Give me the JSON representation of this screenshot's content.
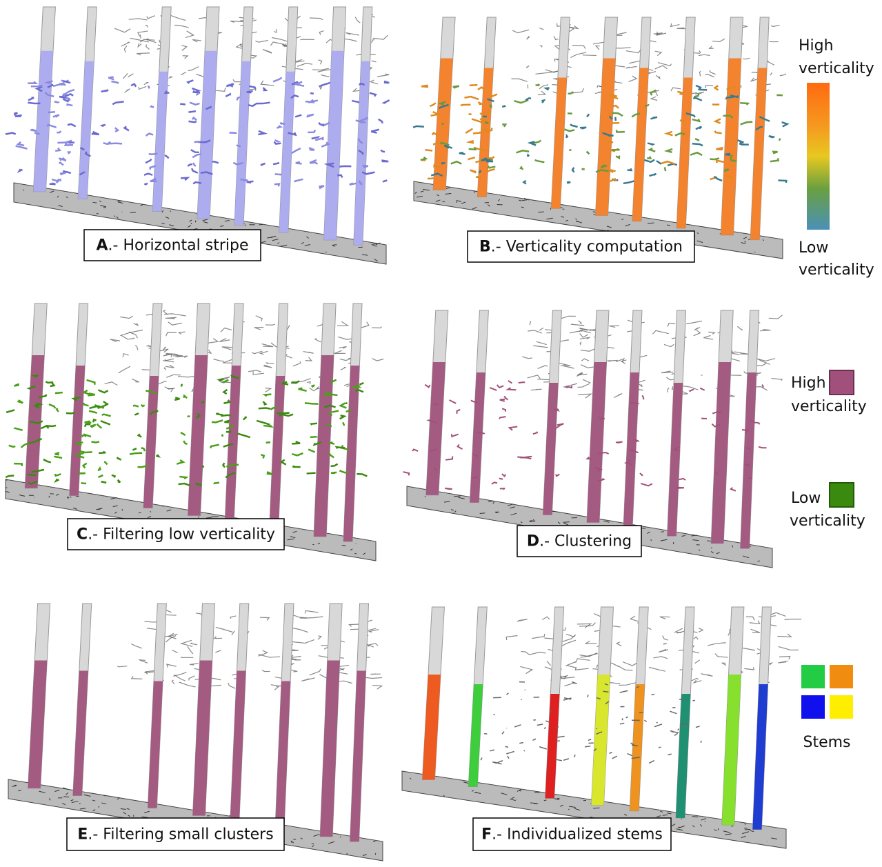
{
  "panels": [
    {
      "letter": "A",
      "caption": ".- Horizontal stripe"
    },
    {
      "letter": "B",
      "caption": ".- Verticality computation"
    },
    {
      "letter": "C",
      "caption": ".- Filtering low verticality"
    },
    {
      "letter": "D",
      "caption": ".- Clustering"
    },
    {
      "letter": "E",
      "caption": ".- Filtering small clusters"
    },
    {
      "letter": "F",
      "caption": ".- Individualized stems"
    }
  ],
  "legend_gradient": {
    "high": [
      "High",
      "verticality"
    ],
    "low": [
      "Low",
      "verticality"
    ]
  },
  "legend_classes": {
    "high": [
      "High",
      "verticality"
    ],
    "low": [
      "Low",
      "verticality"
    ]
  },
  "legend_stems": {
    "label": "Stems"
  }
}
